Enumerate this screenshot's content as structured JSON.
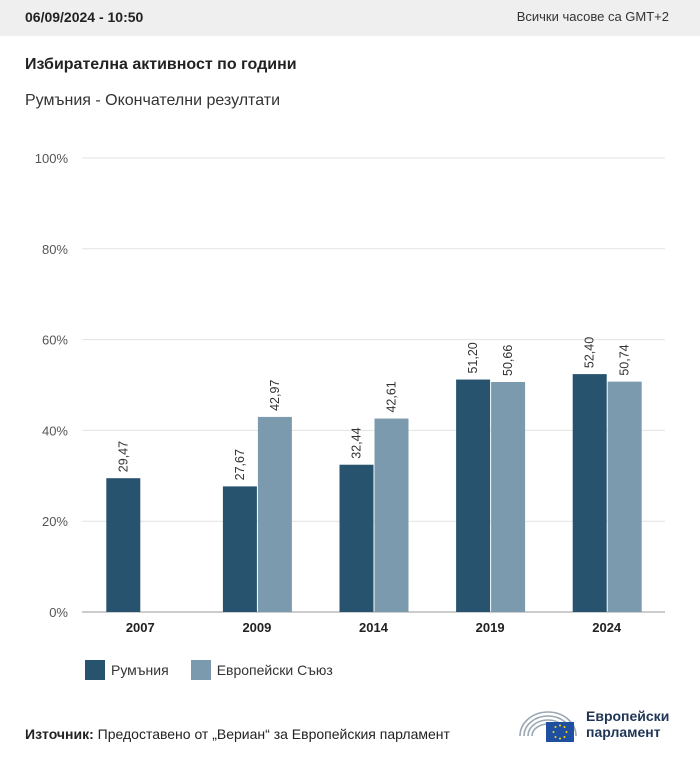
{
  "header": {
    "datetime": "06/09/2024 - 10:50",
    "timezone": "Всички часове са GMT+2"
  },
  "chart_title": "Избирателна активност по години",
  "chart_subtitle": "Румъния - Окончателни резултати",
  "chart_data": {
    "type": "bar",
    "categories": [
      "2007",
      "2009",
      "2014",
      "2019",
      "2024"
    ],
    "series": [
      {
        "name": "Румъния",
        "color": "#27536f",
        "values": [
          29.47,
          27.67,
          32.44,
          51.2,
          52.4
        ],
        "labels": [
          "29,47",
          "27,67",
          "32,44",
          "51,20",
          "52,40"
        ]
      },
      {
        "name": "Европейски Съюз",
        "color": "#7c9aae",
        "values": [
          null,
          42.97,
          42.61,
          50.66,
          50.74
        ],
        "labels": [
          null,
          "42,97",
          "42,61",
          "50,66",
          "50,74"
        ]
      }
    ],
    "ylim": [
      0,
      100
    ],
    "yticks": [
      0,
      20,
      40,
      60,
      80,
      100
    ],
    "ytick_labels": [
      "0%",
      "20%",
      "40%",
      "60%",
      "80%",
      "100%"
    ],
    "grid": true,
    "legend_position": "bottom-left"
  },
  "legend": {
    "items": [
      {
        "label": "Румъния",
        "color": "#27536f"
      },
      {
        "label": "Европейски Съюз",
        "color": "#7c9aae"
      }
    ]
  },
  "footer": {
    "source_label": "Източник:",
    "source_text": " Предоставено от „Вериан“ за Европейския парламент",
    "logo_line1": "Европейски",
    "logo_line2": "парламент"
  }
}
